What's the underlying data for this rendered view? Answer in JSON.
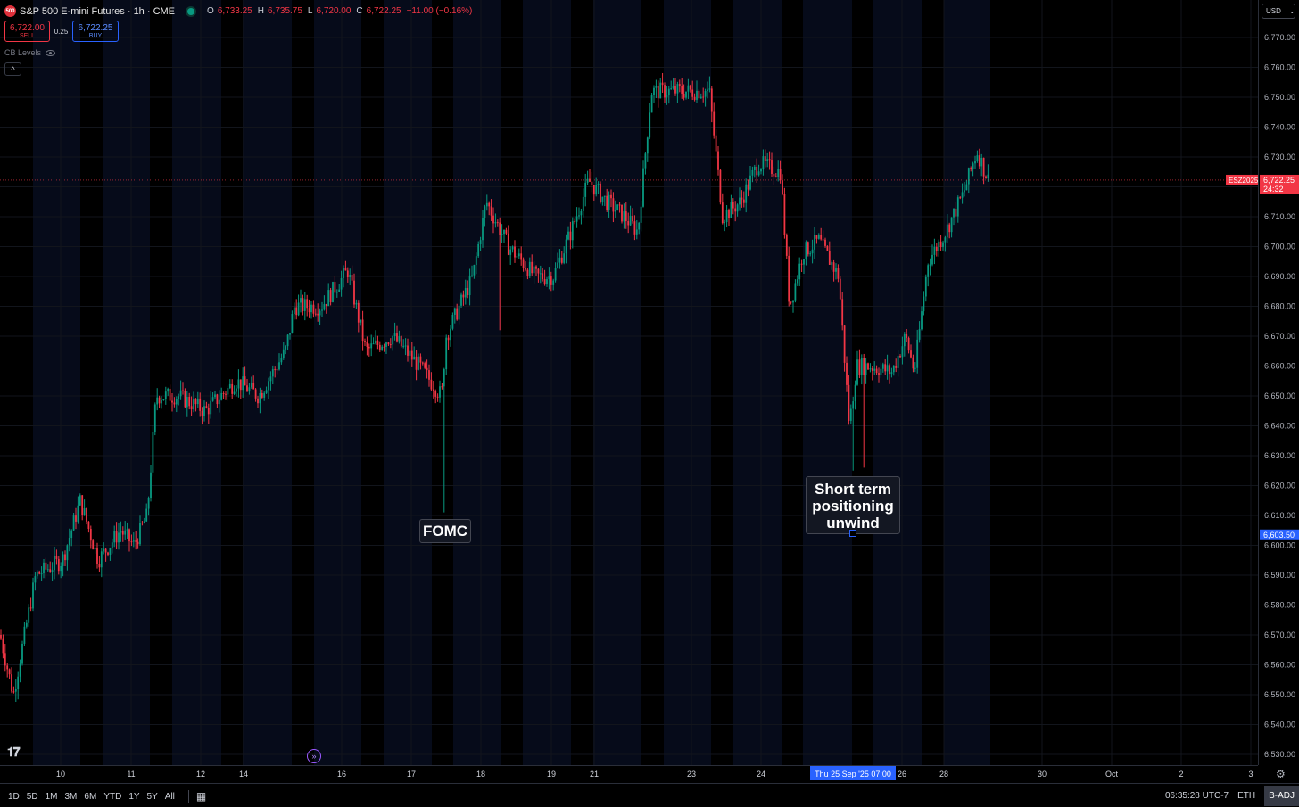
{
  "legend": {
    "symbol_icon": "500",
    "title": "S&P 500 E-mini Futures · 1h · CME",
    "open_key": "O",
    "open": "6,733.25",
    "high_key": "H",
    "high": "6,735.75",
    "low_key": "L",
    "low": "6,720.00",
    "close_key": "C",
    "close": "6,722.25",
    "change": "−11.00 (−0.16%)"
  },
  "trade": {
    "sell_price": "6,722.00",
    "sell_label": "SELL",
    "spread": "0.25",
    "buy_price": "6,722.25",
    "buy_label": "BUY"
  },
  "indicator": {
    "label": "CB Levels"
  },
  "currency": "USD",
  "colors": {
    "up": "#089981",
    "down": "#f23645",
    "accent": "#2962ff"
  },
  "price_axis": {
    "ticks": [
      "6,770.00",
      "6,760.00",
      "6,750.00",
      "6,740.00",
      "6,730.00",
      "6,720.00",
      "6,710.00",
      "6,700.00",
      "6,690.00",
      "6,680.00",
      "6,670.00",
      "6,660.00",
      "6,650.00",
      "6,640.00",
      "6,630.00",
      "6,620.00",
      "6,610.00",
      "6,600.00",
      "6,590.00",
      "6,580.00",
      "6,570.00",
      "6,560.00",
      "6,550.00",
      "6,540.00",
      "6,530.00"
    ],
    "last_symbol": "ESZ2025",
    "last_price": "6,722.25",
    "countdown": "24:32",
    "cursor_price": "6,603.50"
  },
  "time_axis": {
    "labels": [
      "10",
      "11",
      "12",
      "14",
      "16",
      "17",
      "18",
      "19",
      "21",
      "23",
      "24",
      "26",
      "28",
      "30",
      "Oct",
      "2",
      "3"
    ],
    "cursor_label": "Thu 25 Sep '25   07:00"
  },
  "annotations": {
    "fomc": "FOMC",
    "unwind": "Short term positioning unwind"
  },
  "bottom": {
    "ranges": [
      "1D",
      "5D",
      "1M",
      "3M",
      "6M",
      "YTD",
      "1Y",
      "5Y",
      "All"
    ],
    "clock": "06:35:28 UTC-7",
    "session": "ETH",
    "adjust": "B-ADJ"
  },
  "chart_data": {
    "type": "candlestick",
    "x_labels": [
      "10",
      "11",
      "12",
      "14",
      "16",
      "17",
      "18",
      "19",
      "21",
      "23",
      "24",
      "26",
      "28"
    ],
    "ylim": [
      6530,
      6775
    ],
    "keypoints": [
      {
        "x": "10",
        "price": 6570
      },
      {
        "x": "11",
        "price": 6600
      },
      {
        "x": "12",
        "price": 6650
      },
      {
        "x": "14",
        "price": 6665
      },
      {
        "x": "16",
        "price": 6690
      },
      {
        "x": "17",
        "price": 6665
      },
      {
        "x": "17",
        "price": 6612
      },
      {
        "x": "18",
        "price": 6715
      },
      {
        "x": "19",
        "price": 6690
      },
      {
        "x": "21",
        "price": 6720
      },
      {
        "x": "23",
        "price": 6755
      },
      {
        "x": "24",
        "price": 6728
      },
      {
        "x": "24",
        "price": 6680
      },
      {
        "x": "26",
        "price": 6625
      },
      {
        "x": "26",
        "price": 6660
      },
      {
        "x": "28",
        "price": 6700
      },
      {
        "x": "28",
        "price": 6735
      }
    ],
    "last": 6722.25
  }
}
